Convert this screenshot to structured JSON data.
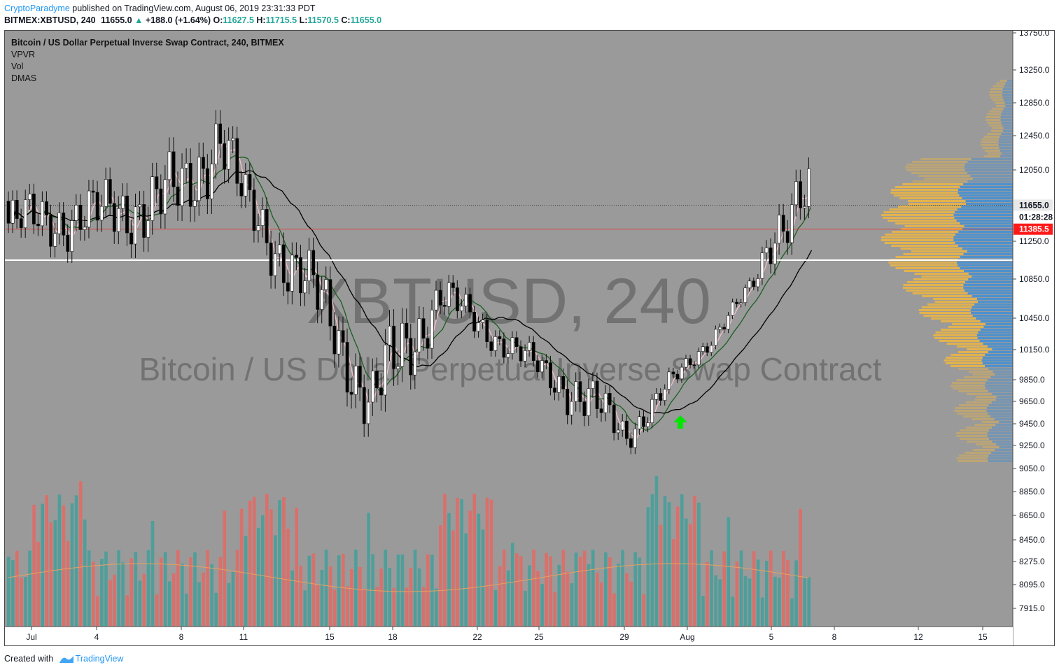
{
  "header": {
    "author": "CryptoParadyme",
    "published_text": " published on TradingView.com, August 06, 2019 23:31:33 PDT",
    "symbol_line": "BITMEX:XBTUSD, 240",
    "price": "11655.0",
    "change": "+188.0 (+1.64%)",
    "open_label": "O:",
    "open": "11627.5",
    "high_label": "H:",
    "high": "11715.5",
    "low_label": "L:",
    "low": "11570.5",
    "close_label": "C:",
    "close": "11655.0"
  },
  "legend": {
    "title": "Bitcoin / US Dollar Perpetual Inverse Swap Contract, 240, BITMEX",
    "indicators": [
      "VPVR",
      "Vol",
      "DMAS"
    ]
  },
  "watermark": {
    "symbol": "XBTUSD, 240",
    "description": "Bitcoin / US Dollar Perpetual Inverse Swap Contract"
  },
  "footer": {
    "created_with": "Created with",
    "brand": "TradingView"
  },
  "colors": {
    "background": "#9a9a9a",
    "bull": "#ffffff",
    "bear": "#000000",
    "volume_up": "#4f9e9a",
    "volume_down": "#d9706b",
    "vpvr_up": "#4a90d0",
    "vpvr_down": "#e6b34a",
    "ma_fast": "#f5c0c8",
    "ma_mid": "#1b5e20",
    "ma_slow": "#000000",
    "support_line": "#ffffff",
    "last_price_tag": "#e8e8e8",
    "red_line": "#e53935",
    "arrow": "#00e600"
  },
  "chart_data": {
    "type": "candlestick",
    "interval": "240",
    "x_ticks": [
      "Jul",
      "4",
      "8",
      "11",
      "15",
      "18",
      "22",
      "25",
      "29",
      "Aug",
      "5",
      "8",
      "12",
      "15"
    ],
    "y_ticks": [
      13750.0,
      13250.0,
      12850.0,
      12450.0,
      12050.0,
      11250.0,
      10850.0,
      10450.0,
      10150.0,
      9850.0,
      9650.0,
      9450.0,
      9250.0,
      9050.0,
      8850.0,
      8650.0,
      8450.0,
      8275.0,
      8095.0,
      7915.0
    ],
    "y_tick_labels": [
      "13750.0",
      "13250.0",
      "12850.0",
      "12450.0",
      "12050.0",
      "11250.0",
      "10850.0",
      "10450.0",
      "10150.0",
      "9850.0",
      "9650.0",
      "9450.0",
      "9250.0",
      "9050.0",
      "8850.0",
      "8650.0",
      "8450.0",
      "8275.0",
      "8095.0",
      "7915.0"
    ],
    "price_markers": [
      {
        "label": "11655.0",
        "value": 11655.0,
        "style": "last"
      },
      {
        "label": "01:28:28",
        "value": 11520.0,
        "style": "countdown"
      },
      {
        "label": "11385.5",
        "value": 11385.5,
        "style": "red"
      }
    ],
    "support_level": 11050,
    "red_level": 11385.5,
    "key_points": [
      {
        "label": "Jul",
        "low": 11000,
        "high": 11900
      },
      {
        "label": "4",
        "low": 11000,
        "high": 12050
      },
      {
        "label": "8",
        "low": 11050,
        "high": 12500
      },
      {
        "label": "10",
        "low": 11800,
        "high": 13200
      },
      {
        "label": "11",
        "low": 11100,
        "high": 12200
      },
      {
        "label": "15",
        "low": 9850,
        "high": 11000
      },
      {
        "label": "17",
        "low": 9100,
        "high": 10100
      },
      {
        "label": "18",
        "low": 9300,
        "high": 10700
      },
      {
        "label": "20",
        "low": 10300,
        "high": 11050
      },
      {
        "label": "22",
        "low": 10150,
        "high": 10650
      },
      {
        "label": "25",
        "low": 9700,
        "high": 10200
      },
      {
        "label": "27",
        "low": 9300,
        "high": 10100
      },
      {
        "label": "29",
        "low": 9100,
        "high": 9600
      },
      {
        "label": "Aug",
        "low": 9850,
        "high": 10150
      },
      {
        "label": "3",
        "low": 10650,
        "high": 10950
      },
      {
        "label": "5",
        "low": 10900,
        "high": 11900
      },
      {
        "label": "6",
        "low": 11200,
        "high": 12300
      }
    ]
  }
}
